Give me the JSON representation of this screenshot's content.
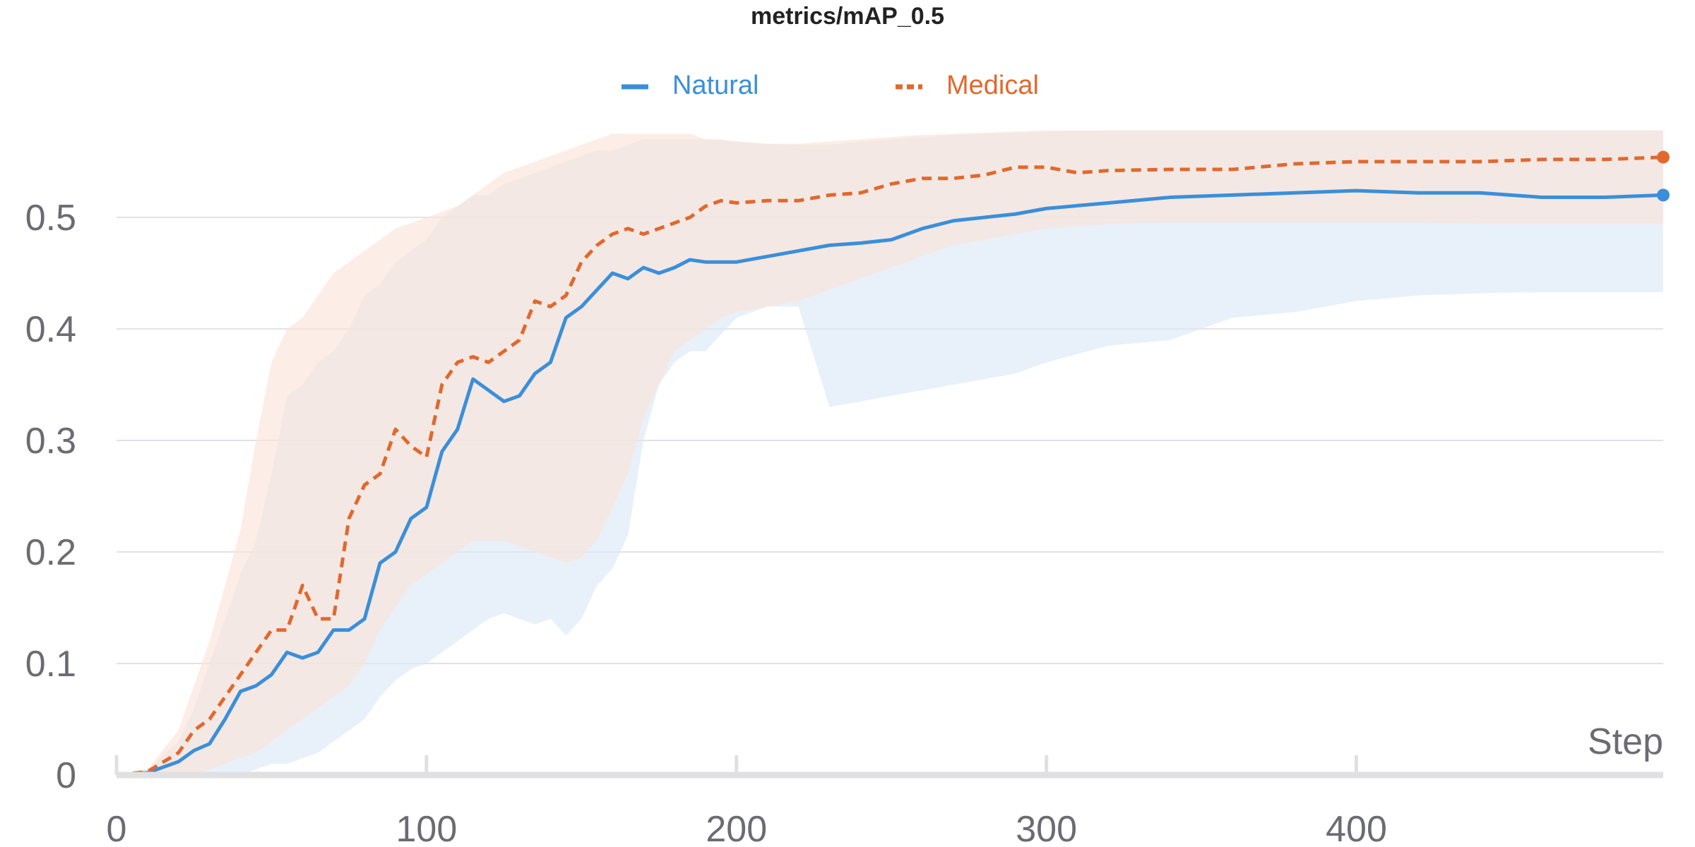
{
  "chart_data": {
    "type": "line",
    "title": "metrics/mAP_0.5",
    "xlabel": "Step",
    "ylabel": "",
    "xlim": [
      0,
      499
    ],
    "ylim": [
      0,
      0.6
    ],
    "x_ticks": [
      0,
      100,
      200,
      300,
      400
    ],
    "y_ticks": [
      0,
      0.1,
      0.2,
      0.3,
      0.4,
      0.5
    ],
    "x_tick_labels": [
      "0",
      "100",
      "200",
      "300",
      "400"
    ],
    "y_tick_labels": [
      "0",
      "0.1",
      "0.2",
      "0.3",
      "0.4",
      "0.5"
    ],
    "grid": "horizontal",
    "legend_position": "top-center",
    "series": [
      {
        "name": "Natural",
        "color": "#3a8fd9",
        "dash": "solid",
        "band_color": "#dbe9f8",
        "x": [
          0,
          10,
          20,
          25,
          30,
          35,
          40,
          45,
          50,
          55,
          60,
          65,
          70,
          75,
          80,
          85,
          90,
          95,
          100,
          105,
          110,
          115,
          120,
          125,
          130,
          135,
          140,
          145,
          150,
          155,
          160,
          165,
          170,
          175,
          180,
          185,
          190,
          200,
          210,
          220,
          230,
          240,
          250,
          260,
          270,
          280,
          290,
          300,
          320,
          340,
          360,
          380,
          400,
          420,
          440,
          460,
          480,
          499
        ],
        "y": [
          0,
          0.002,
          0.012,
          0.022,
          0.028,
          0.05,
          0.075,
          0.08,
          0.09,
          0.11,
          0.105,
          0.11,
          0.13,
          0.13,
          0.14,
          0.19,
          0.2,
          0.23,
          0.24,
          0.29,
          0.31,
          0.355,
          0.345,
          0.335,
          0.34,
          0.36,
          0.37,
          0.41,
          0.42,
          0.435,
          0.45,
          0.445,
          0.455,
          0.45,
          0.455,
          0.462,
          0.46,
          0.46,
          0.465,
          0.47,
          0.475,
          0.477,
          0.48,
          0.49,
          0.497,
          0.5,
          0.503,
          0.508,
          0.513,
          0.518,
          0.52,
          0.522,
          0.524,
          0.522,
          0.522,
          0.518,
          0.518,
          0.52
        ],
        "band_lower": [
          0,
          0,
          0,
          0,
          0,
          0,
          0,
          0.005,
          0.01,
          0.01,
          0.015,
          0.02,
          0.03,
          0.04,
          0.05,
          0.07,
          0.085,
          0.095,
          0.1,
          0.11,
          0.12,
          0.13,
          0.14,
          0.145,
          0.14,
          0.135,
          0.14,
          0.125,
          0.14,
          0.17,
          0.185,
          0.215,
          0.3,
          0.35,
          0.37,
          0.38,
          0.38,
          0.41,
          0.42,
          0.42,
          0.33,
          0.335,
          0.34,
          0.345,
          0.35,
          0.355,
          0.36,
          0.37,
          0.385,
          0.39,
          0.41,
          0.415,
          0.425,
          0.43,
          0.432,
          0.433,
          0.433,
          0.433
        ],
        "band_upper": [
          0,
          0.005,
          0.03,
          0.06,
          0.1,
          0.14,
          0.18,
          0.21,
          0.27,
          0.34,
          0.35,
          0.37,
          0.38,
          0.4,
          0.43,
          0.44,
          0.46,
          0.47,
          0.48,
          0.5,
          0.51,
          0.52,
          0.52,
          0.53,
          0.535,
          0.54,
          0.545,
          0.55,
          0.555,
          0.56,
          0.56,
          0.565,
          0.57,
          0.57,
          0.57,
          0.57,
          0.57,
          0.568,
          0.566,
          0.565,
          0.565,
          0.568,
          0.57,
          0.572,
          0.574,
          0.575,
          0.576,
          0.577,
          0.578,
          0.578,
          0.578,
          0.578,
          0.578,
          0.578,
          0.578,
          0.578,
          0.578,
          0.578
        ]
      },
      {
        "name": "Medical",
        "color": "#e0692e",
        "dash": "dashed",
        "band_color": "#fbe3d8",
        "x": [
          0,
          10,
          20,
          25,
          30,
          35,
          40,
          45,
          50,
          55,
          60,
          65,
          70,
          75,
          80,
          85,
          90,
          95,
          100,
          105,
          110,
          115,
          120,
          125,
          130,
          135,
          140,
          145,
          150,
          155,
          160,
          165,
          170,
          175,
          180,
          185,
          190,
          195,
          200,
          210,
          220,
          230,
          240,
          250,
          260,
          270,
          280,
          290,
          300,
          310,
          320,
          340,
          360,
          380,
          400,
          420,
          440,
          460,
          480,
          499
        ],
        "y": [
          0,
          0.003,
          0.02,
          0.04,
          0.05,
          0.07,
          0.09,
          0.11,
          0.13,
          0.13,
          0.17,
          0.14,
          0.14,
          0.23,
          0.26,
          0.27,
          0.31,
          0.295,
          0.285,
          0.35,
          0.37,
          0.375,
          0.37,
          0.38,
          0.39,
          0.425,
          0.42,
          0.43,
          0.46,
          0.475,
          0.485,
          0.49,
          0.485,
          0.49,
          0.495,
          0.5,
          0.51,
          0.515,
          0.513,
          0.515,
          0.515,
          0.52,
          0.522,
          0.53,
          0.535,
          0.535,
          0.538,
          0.545,
          0.545,
          0.54,
          0.542,
          0.543,
          0.543,
          0.548,
          0.55,
          0.55,
          0.55,
          0.552,
          0.552,
          0.554
        ],
        "band_lower": [
          0,
          0,
          0,
          0,
          0.005,
          0.01,
          0.015,
          0.02,
          0.03,
          0.04,
          0.05,
          0.06,
          0.07,
          0.08,
          0.1,
          0.13,
          0.15,
          0.17,
          0.18,
          0.19,
          0.2,
          0.21,
          0.21,
          0.21,
          0.205,
          0.2,
          0.195,
          0.19,
          0.195,
          0.21,
          0.24,
          0.27,
          0.32,
          0.35,
          0.38,
          0.39,
          0.4,
          0.41,
          0.415,
          0.42,
          0.425,
          0.435,
          0.445,
          0.455,
          0.465,
          0.475,
          0.48,
          0.485,
          0.49,
          0.492,
          0.494,
          0.495,
          0.495,
          0.495,
          0.495,
          0.495,
          0.494,
          0.494,
          0.494,
          0.494
        ],
        "band_upper": [
          0,
          0.005,
          0.04,
          0.08,
          0.12,
          0.17,
          0.22,
          0.3,
          0.37,
          0.4,
          0.41,
          0.43,
          0.45,
          0.46,
          0.47,
          0.48,
          0.49,
          0.495,
          0.5,
          0.505,
          0.51,
          0.52,
          0.53,
          0.54,
          0.545,
          0.55,
          0.555,
          0.56,
          0.565,
          0.57,
          0.575,
          0.575,
          0.575,
          0.575,
          0.575,
          0.575,
          0.57,
          0.57,
          0.568,
          0.566,
          0.566,
          0.568,
          0.57,
          0.572,
          0.574,
          0.575,
          0.576,
          0.577,
          0.578,
          0.578,
          0.578,
          0.578,
          0.578,
          0.578,
          0.578,
          0.578,
          0.578,
          0.578,
          0.578,
          0.578
        ]
      }
    ]
  }
}
